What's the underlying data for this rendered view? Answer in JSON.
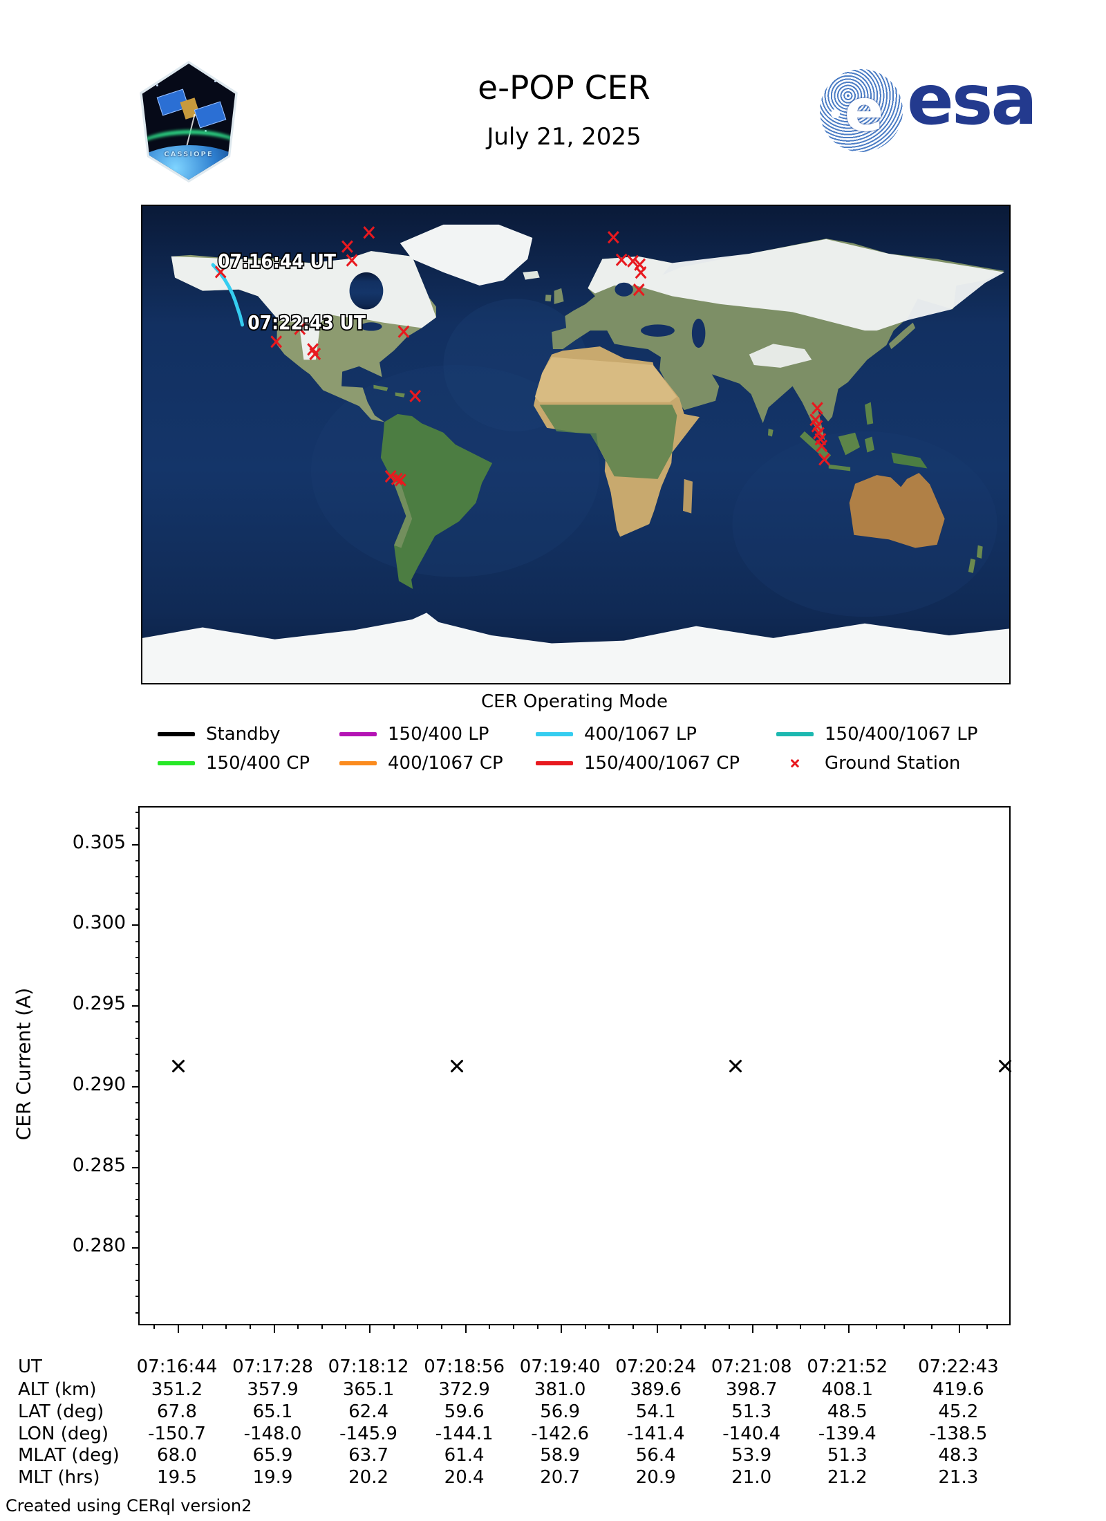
{
  "header": {
    "title": "e-POP CER",
    "date": "July 21, 2025",
    "patch_text": "CASSIOPE",
    "esa_wordmark": "esa"
  },
  "map": {
    "caption": "CER Operating Mode",
    "track": {
      "mode": "400/1067 LP",
      "color": "#35cdf0",
      "start_label": "07:16:44 UT",
      "end_label": "07:22:43 UT",
      "points_latlon": [
        [
          67.8,
          -150.7
        ],
        [
          65.1,
          -148.0
        ],
        [
          62.4,
          -145.9
        ],
        [
          59.6,
          -144.1
        ],
        [
          56.9,
          -142.6
        ],
        [
          54.1,
          -141.4
        ],
        [
          51.3,
          -140.4
        ],
        [
          48.5,
          -139.4
        ],
        [
          45.2,
          -138.5
        ]
      ]
    },
    "ground_station_color": "#e8191f",
    "ground_stations_latlon": [
      [
        80.0,
        -85.9
      ],
      [
        74.7,
        -94.9
      ],
      [
        69.5,
        -93.0
      ],
      [
        65.1,
        -147.5
      ],
      [
        43.7,
        -114.6
      ],
      [
        38.8,
        -124.4
      ],
      [
        35.9,
        -109.2
      ],
      [
        34.2,
        -108.3
      ],
      [
        42.6,
        -71.5
      ],
      [
        18.3,
        -66.7
      ],
      [
        -12.0,
        -76.9
      ],
      [
        -13.0,
        -74.3
      ],
      [
        -13.4,
        -72.8
      ],
      [
        78.2,
        15.6
      ],
      [
        69.7,
        19.0
      ],
      [
        69.2,
        23.7
      ],
      [
        67.9,
        26.6
      ],
      [
        64.9,
        27.0
      ],
      [
        58.4,
        26.2
      ],
      [
        13.7,
        100.3
      ],
      [
        9.3,
        99.5
      ],
      [
        6.9,
        100.2
      ],
      [
        4.3,
        100.9
      ],
      [
        2.0,
        101.6
      ],
      [
        -0.5,
        102.1
      ],
      [
        -5.6,
        103.2
      ]
    ]
  },
  "legend": {
    "entries": [
      {
        "label": "Standby",
        "color": "#000000",
        "type": "line"
      },
      {
        "label": "150/400 LP",
        "color": "#b413b4",
        "type": "line"
      },
      {
        "label": "400/1067 LP",
        "color": "#35cdf0",
        "type": "line"
      },
      {
        "label": "150/400/1067 LP",
        "color": "#1cb8b0",
        "type": "line"
      },
      {
        "label": "150/400 CP",
        "color": "#27e827",
        "type": "line"
      },
      {
        "label": "400/1067 CP",
        "color": "#fb8b1e",
        "type": "line"
      },
      {
        "label": "150/400/1067 CP",
        "color": "#e8191f",
        "type": "line"
      },
      {
        "label": "Ground Station",
        "color": "#e8191f",
        "type": "x"
      }
    ]
  },
  "chart_data": {
    "type": "scatter",
    "title": "",
    "xlabel": "",
    "ylabel": "CER Current (A)",
    "ylim": [
      0.2753,
      0.3073
    ],
    "yticks": [
      0.28,
      0.285,
      0.29,
      0.295,
      0.3,
      0.305
    ],
    "y_minor_step": 0.001,
    "x_categories": [
      "07:16:44",
      "07:17:28",
      "07:18:12",
      "07:18:56",
      "07:19:40",
      "07:20:24",
      "07:21:08",
      "07:21:52",
      "07:22:43"
    ],
    "grid": false,
    "marker": "x",
    "marker_color": "#000000",
    "points": [
      {
        "ut": "07:16:44",
        "current_a": 0.2913
      },
      {
        "ut": "07:18:45",
        "current_a": 0.2913
      },
      {
        "ut": "07:20:46",
        "current_a": 0.2913
      },
      {
        "ut": "07:22:43",
        "current_a": 0.2913
      }
    ]
  },
  "table": {
    "rows": [
      {
        "label": "UT",
        "values": [
          "07:16:44",
          "07:17:28",
          "07:18:12",
          "07:18:56",
          "07:19:40",
          "07:20:24",
          "07:21:08",
          "07:21:52",
          "07:22:43"
        ]
      },
      {
        "label": "ALT (km)",
        "values": [
          "351.2",
          "357.9",
          "365.1",
          "372.9",
          "381.0",
          "389.6",
          "398.7",
          "408.1",
          "419.6"
        ]
      },
      {
        "label": "LAT (deg)",
        "values": [
          "67.8",
          "65.1",
          "62.4",
          "59.6",
          "56.9",
          "54.1",
          "51.3",
          "48.5",
          "45.2"
        ]
      },
      {
        "label": "LON (deg)",
        "values": [
          "-150.7",
          "-148.0",
          "-145.9",
          "-144.1",
          "-142.6",
          "-141.4",
          "-140.4",
          "-139.4",
          "-138.5"
        ]
      },
      {
        "label": "MLAT (deg)",
        "values": [
          "68.0",
          "65.9",
          "63.7",
          "61.4",
          "58.9",
          "56.4",
          "53.9",
          "51.3",
          "48.3"
        ]
      },
      {
        "label": "MLT (hrs)",
        "values": [
          "19.5",
          "19.9",
          "20.2",
          "20.4",
          "20.7",
          "20.9",
          "21.0",
          "21.2",
          "21.3"
        ]
      }
    ]
  },
  "footer": "Created using CERql version2"
}
